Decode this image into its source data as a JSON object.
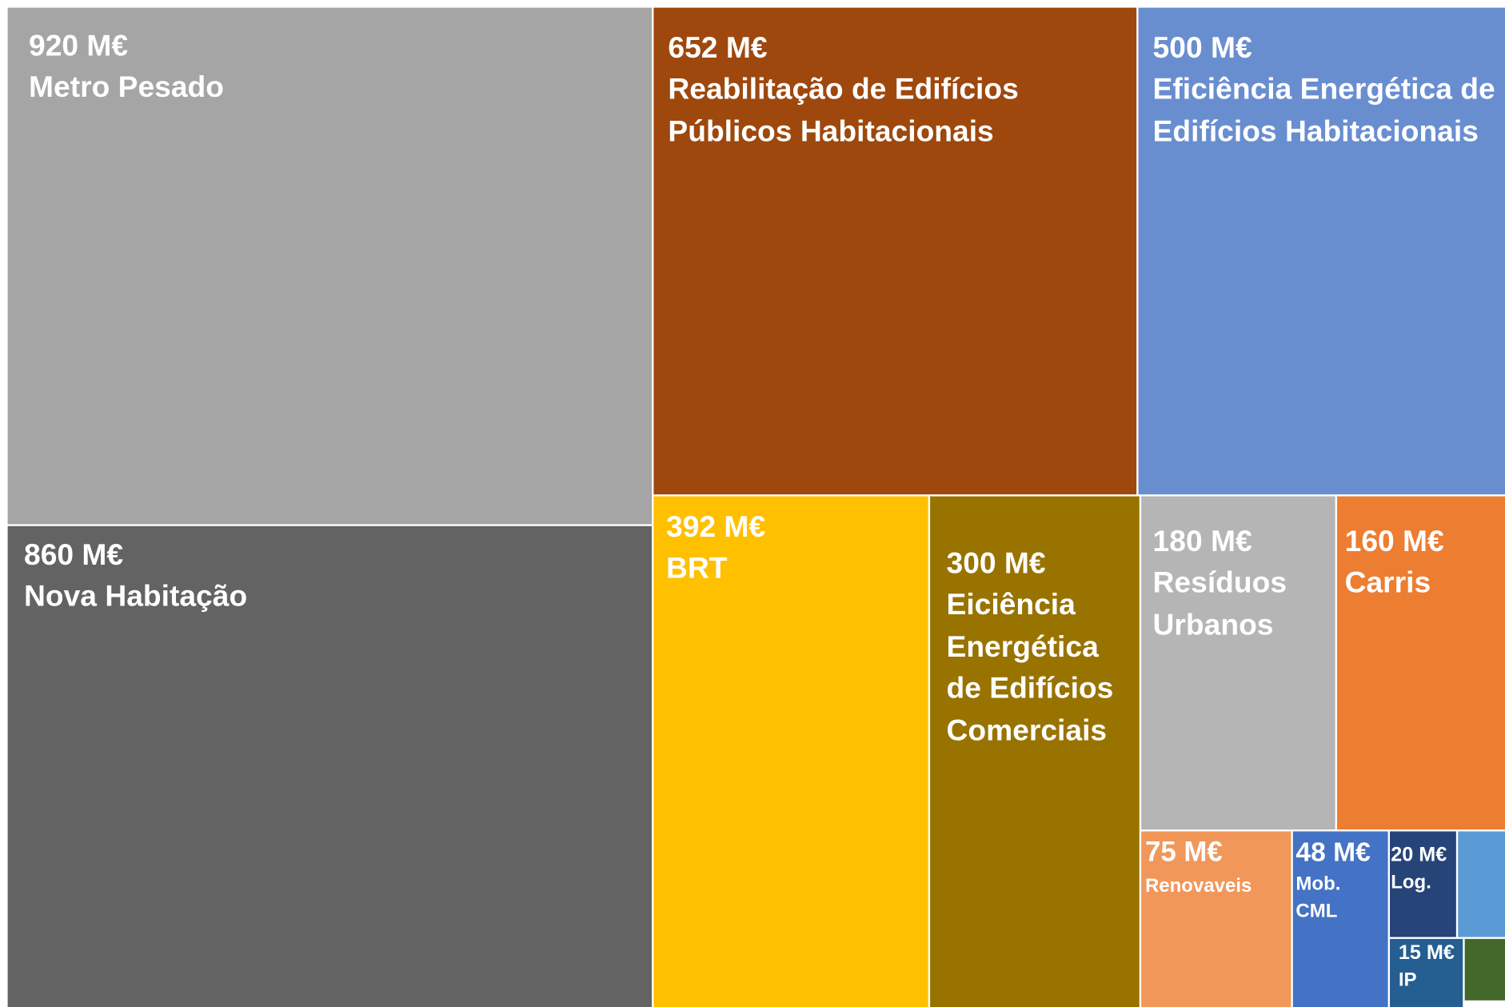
{
  "chart_data": {
    "type": "treemap",
    "categories": [
      "Metro Pesado",
      "Nova Habitação",
      "Reabilitação de Edifícios Públicos Habitacionais",
      "Eficiência Energética de Edifícios Habitacionais",
      "BRT",
      "Eiciência Energética de Edifícios Comerciais",
      "Resíduos Urbanos",
      "Carris",
      "Renovaveis",
      "Mob. CML",
      "Log.",
      "IP",
      null,
      null
    ],
    "values": [
      920,
      860,
      652,
      500,
      392,
      300,
      180,
      160,
      75,
      48,
      20,
      15,
      14,
      7
    ],
    "value_labels": [
      "920 M€",
      "860 M€",
      "652 M€",
      "500 M€",
      "392 M€",
      "300 M€",
      "180 M€",
      "160 M€",
      "75 M€",
      "48 M€",
      "20 M€",
      "15 M€",
      null,
      null
    ],
    "colors": [
      "#a5a5a5",
      "#636363",
      "#9e480e",
      "#698ed0",
      "#ffc000",
      "#997300",
      "#b5b5b5",
      "#ed7d31",
      "#f1975a",
      "#4472c4",
      "#264478",
      "#255e91",
      "#5b9bd5",
      "#43682b"
    ]
  }
}
